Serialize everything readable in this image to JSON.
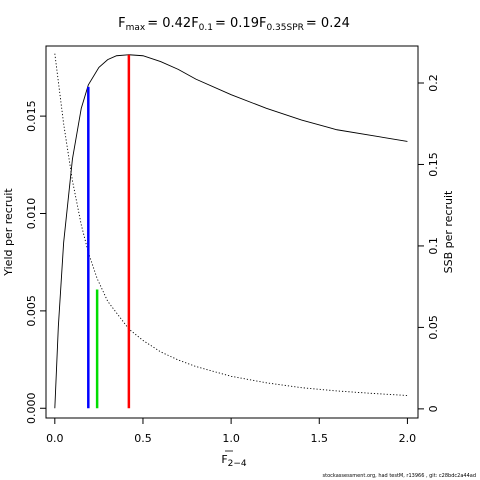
{
  "chart_data": {
    "type": "line",
    "title": {
      "parts": [
        {
          "main": "F",
          "sub": "max",
          "value": "= 0.42"
        },
        {
          "main": "F",
          "sub": "0.1",
          "value": "= 0.19"
        },
        {
          "main": "F",
          "sub": "0.35SPR",
          "value": "= 0.24"
        }
      ]
    },
    "xlabel": {
      "main": "F",
      "sub": "2−4"
    },
    "ylabel_left": "Yield per recruit",
    "ylabel_right": "SSB per recruit",
    "xlim": [
      -0.05,
      2.06
    ],
    "ylim_left": [
      -0.0005,
      0.0186
    ],
    "ylim_right": [
      -0.0056,
      0.2227
    ],
    "x_ticks": [
      0,
      0.5,
      1,
      1.5,
      2
    ],
    "x_tick_labels": [
      "0.0",
      "0.5",
      "1.0",
      "1.5",
      "2.0"
    ],
    "y_left_ticks": [
      0,
      0.005,
      0.01,
      0.015
    ],
    "y_left_tick_labels": [
      "0.000",
      "0.005",
      "0.010",
      "0.015"
    ],
    "y_right_ticks": [
      0,
      0.05,
      0.1,
      0.15,
      0.2
    ],
    "y_right_tick_labels": [
      "0",
      "0.05",
      "0.1",
      "0.15",
      "0.2"
    ],
    "series": [
      {
        "axis": "left",
        "style": "solid",
        "color": "#000000",
        "x": [
          0,
          0.02,
          0.05,
          0.1,
          0.15,
          0.19,
          0.25,
          0.3,
          0.35,
          0.42,
          0.5,
          0.6,
          0.7,
          0.8,
          1.0,
          1.2,
          1.4,
          1.6,
          1.8,
          2.0
        ],
        "y": [
          0,
          0.0042,
          0.0085,
          0.0128,
          0.0154,
          0.0166,
          0.0175,
          0.0179,
          0.0181,
          0.01815,
          0.0181,
          0.0178,
          0.0174,
          0.0169,
          0.0161,
          0.0154,
          0.0148,
          0.0143,
          0.014,
          0.0137
        ]
      },
      {
        "axis": "right",
        "style": "dotted",
        "color": "#000000",
        "x": [
          0,
          0.05,
          0.1,
          0.15,
          0.19,
          0.24,
          0.3,
          0.42,
          0.5,
          0.6,
          0.7,
          0.8,
          1.0,
          1.2,
          1.4,
          1.6,
          1.8,
          2.0
        ],
        "y": [
          0.218,
          0.175,
          0.14,
          0.113,
          0.096,
          0.08,
          0.066,
          0.049,
          0.042,
          0.035,
          0.03,
          0.026,
          0.02,
          0.016,
          0.013,
          0.011,
          0.0095,
          0.0082
        ]
      }
    ],
    "reference_lines": [
      {
        "name": "F0.1",
        "x": 0.19,
        "y_top": 0.0165,
        "color": "#0000ff"
      },
      {
        "name": "F0.35SPR",
        "x": 0.24,
        "y_top": 0.0061,
        "color": "#00dd00"
      },
      {
        "name": "Fmax",
        "x": 0.42,
        "y_top": 0.01815,
        "color": "#ff0000"
      }
    ],
    "grid": false,
    "legend": "none"
  },
  "footer": "stockassessment.org, had testM, r13966 , git: c28bdc2a44ad"
}
